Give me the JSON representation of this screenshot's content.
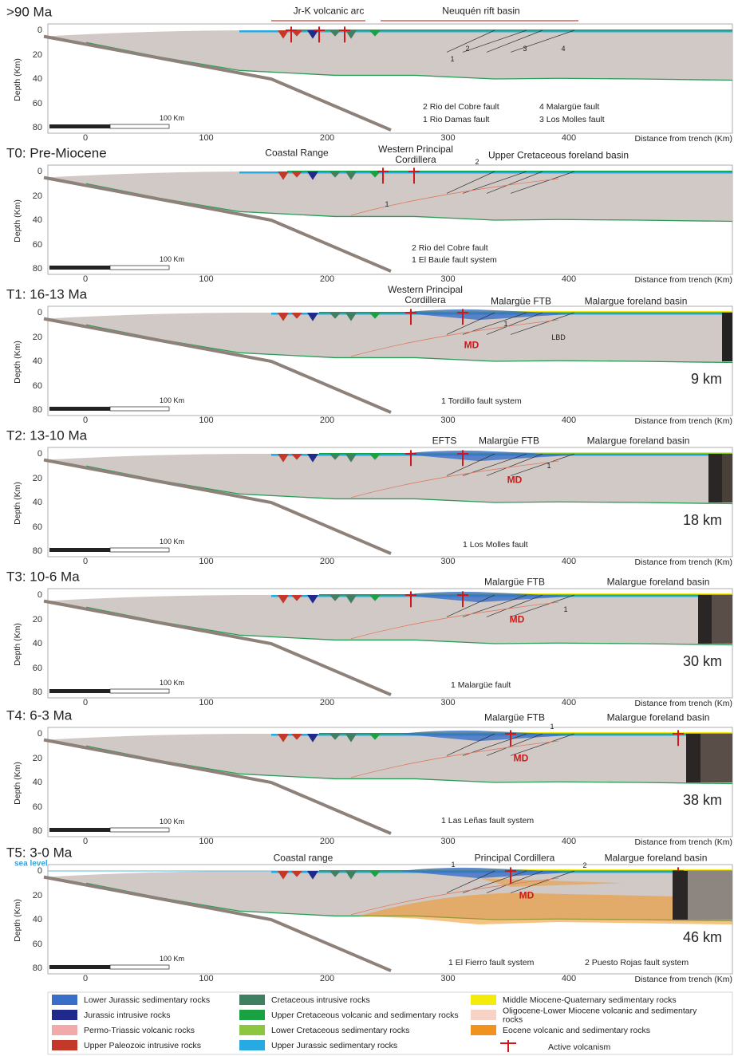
{
  "axes": {
    "y_label": "Depth (Km)",
    "x_label": "Distance from trench (Km)",
    "xticks": [
      0,
      100,
      200,
      300,
      400
    ],
    "yticks": [
      0,
      20,
      40,
      60,
      80
    ],
    "scale_bar": "100 Km"
  },
  "panels": [
    {
      "title": ">90 Ma",
      "labels": [
        "Jr-K volcanic arc",
        "Neuquén rift basin",
        "1",
        "2",
        "3",
        "4"
      ],
      "notes": [
        "2 Rio del Cobre fault",
        "1 Rio Damas fault",
        "4 Malargüe fault",
        "3 Los Molles fault"
      ]
    },
    {
      "title": "T0: Pre-Miocene",
      "labels": [
        "Coastal Range",
        "Western Principal Cordillera",
        "Upper Cretaceous foreland basin",
        "1",
        "2"
      ],
      "notes": [
        "2 Rio del Cobre fault",
        "1 El Baule fault system"
      ]
    },
    {
      "title": "T1: 16-13 Ma",
      "labels": [
        "Western Principal Cordillera",
        "Malargüe FTB",
        "Malargue foreland basin",
        "MD",
        "LBD",
        "1"
      ],
      "notes": [
        "1 Tordillo fault system"
      ],
      "shortening": "9 km"
    },
    {
      "title": "T2: 13-10 Ma",
      "labels": [
        "EFTS",
        "Malargüe FTB",
        "Malargue foreland basin",
        "MD",
        "1"
      ],
      "notes": [
        "1 Los Molles fault"
      ],
      "shortening": "18 km"
    },
    {
      "title": "T3: 10-6 Ma",
      "labels": [
        "Malargüe FTB",
        "Malargue foreland basin",
        "MD",
        "1"
      ],
      "notes": [
        "1 Malargüe fault"
      ],
      "shortening": "30 km"
    },
    {
      "title": "T4: 6-3 Ma",
      "labels": [
        "Malargüe FTB",
        "Malargue foreland basin",
        "MD",
        "1"
      ],
      "notes": [
        "1 Las Leñas fault system"
      ],
      "shortening": "38 km"
    },
    {
      "title": "T5: 3-0 Ma",
      "labels": [
        "sea level",
        "Coastal range",
        "Principal Cordillera",
        "Malargue foreland basin",
        "MD",
        "1",
        "2"
      ],
      "notes": [
        "1 El Fierro fault system",
        "2 Puesto Rojas fault system"
      ],
      "shortening": "46 km"
    }
  ],
  "legend": [
    {
      "label": "Lower Jurassic sedimentary rocks",
      "color": "#3a6fc8"
    },
    {
      "label": "Jurassic intrusive rocks",
      "color": "#1f2a8c"
    },
    {
      "label": "Permo-Triassic volcanic rocks",
      "color": "#f2a9a9"
    },
    {
      "label": "Upper Paleozoic intrusive rocks",
      "color": "#c4382a"
    },
    {
      "label": "Cretaceous intrusive rocks",
      "color": "#3f7f62"
    },
    {
      "label": "Upper Cretaceous volcanic and sedimentary rocks",
      "color": "#18a244"
    },
    {
      "label": "Lower Cretaceous sedimentary rocks",
      "color": "#8dc63f"
    },
    {
      "label": "Upper Jurassic sedimentary rocks",
      "color": "#27aae1"
    },
    {
      "label": "Middle Miocene-Quaternary sedimentary rocks",
      "color": "#f5eb0a"
    },
    {
      "label": "Oligocene-Lower Miocene volcanic and sedimentary rocks",
      "color": "#f7d3c5"
    },
    {
      "label": "Eocene volcanic and sedimentary rocks",
      "color": "#f0921e"
    },
    {
      "label": "Active volcanism",
      "color": "#d01818"
    }
  ]
}
